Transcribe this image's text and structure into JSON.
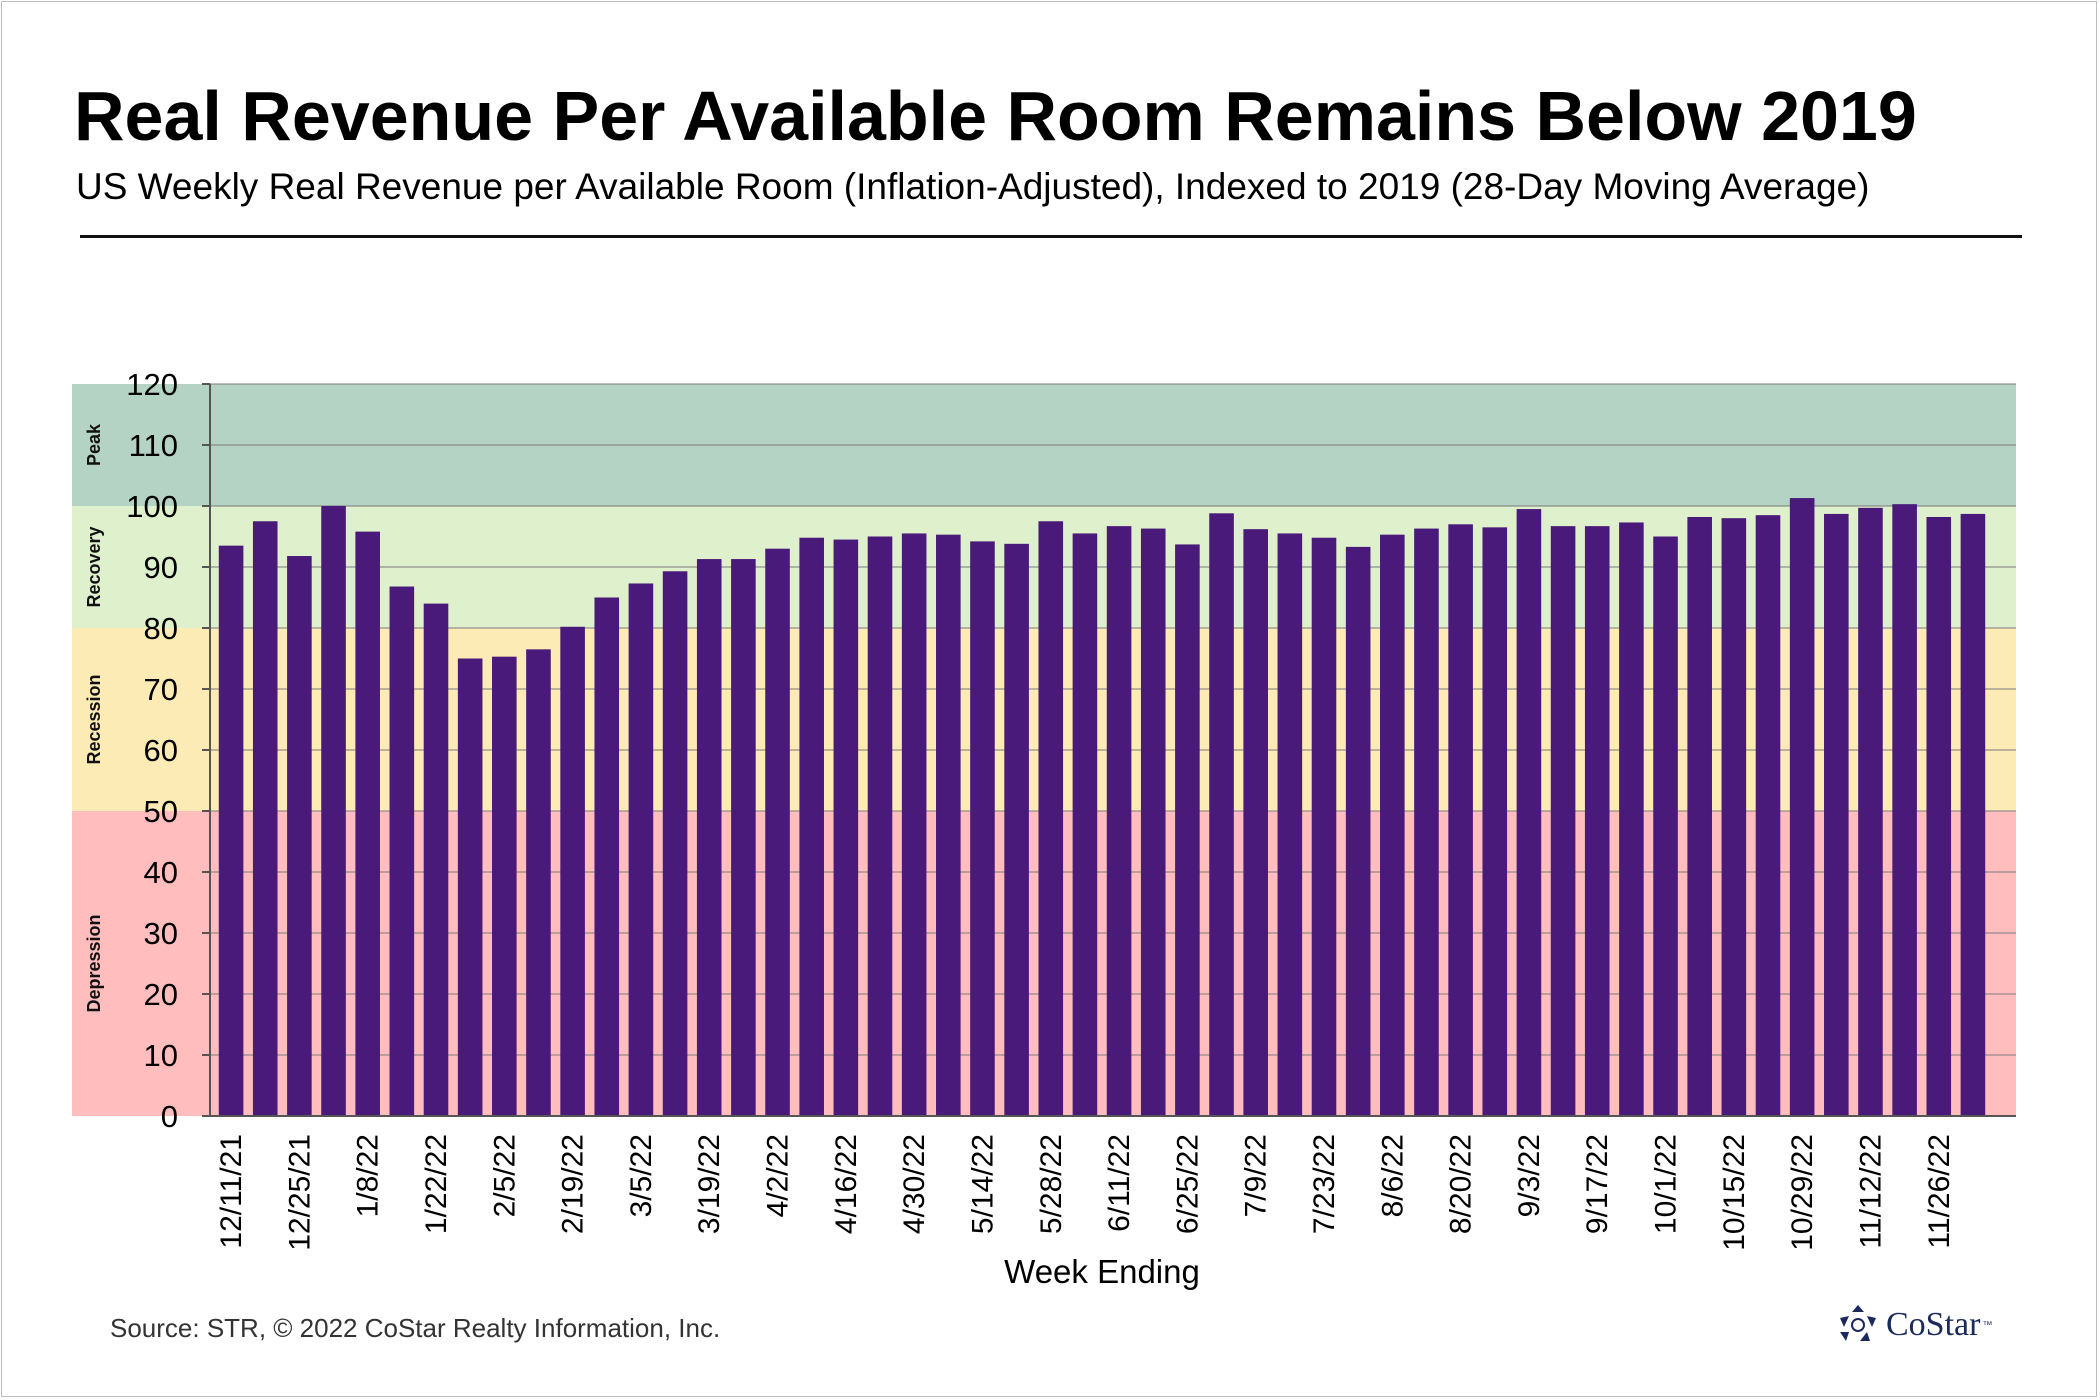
{
  "header": {
    "title": "Real Revenue Per Available Room Remains Below 2019",
    "subtitle": "US Weekly Real Revenue per Available Room (Inflation-Adjusted), Indexed to 2019 (28-Day Moving Average)"
  },
  "footer": {
    "source": "Source: STR, © 2022  CoStar Realty Information, Inc.",
    "logo_text": "CoStar",
    "logo_tm": "™"
  },
  "chart_data": {
    "type": "bar",
    "title": "Real Revenue Per Available Room Remains Below 2019",
    "subtitle": "US Weekly Real Revenue per Available Room (Inflation-Adjusted), Indexed to 2019 (28-Day Moving Average)",
    "xlabel": "Week Ending",
    "ylabel": "",
    "ylim": [
      0,
      120
    ],
    "yticks": [
      0,
      10,
      20,
      30,
      40,
      50,
      60,
      70,
      80,
      90,
      100,
      110,
      120
    ],
    "grid": true,
    "bar_color": "#4a1a7a",
    "categories": [
      "12/11/21",
      "12/18/21",
      "12/25/21",
      "1/1/22",
      "1/8/22",
      "1/15/22",
      "1/22/22",
      "1/29/22",
      "2/5/22",
      "2/12/22",
      "2/19/22",
      "2/26/22",
      "3/5/22",
      "3/12/22",
      "3/19/22",
      "3/26/22",
      "4/2/22",
      "4/9/22",
      "4/16/22",
      "4/23/22",
      "4/30/22",
      "5/7/22",
      "5/14/22",
      "5/21/22",
      "5/28/22",
      "6/4/22",
      "6/11/22",
      "6/18/22",
      "6/25/22",
      "7/2/22",
      "7/9/22",
      "7/16/22",
      "7/23/22",
      "7/30/22",
      "8/6/22",
      "8/13/22",
      "8/20/22",
      "8/27/22",
      "9/3/22",
      "9/10/22",
      "9/17/22",
      "9/24/22",
      "10/1/22",
      "10/8/22",
      "10/15/22",
      "10/22/22",
      "10/29/22",
      "11/5/22",
      "11/12/22",
      "11/19/22",
      "11/26/22",
      "12/3/22"
    ],
    "tick_labels_shown": [
      "12/11/21",
      "12/25/21",
      "1/8/22",
      "1/22/22",
      "2/5/22",
      "2/19/22",
      "3/5/22",
      "3/19/22",
      "4/2/22",
      "4/16/22",
      "4/30/22",
      "5/14/22",
      "5/28/22",
      "6/11/22",
      "6/25/22",
      "7/9/22",
      "7/23/22",
      "8/6/22",
      "8/20/22",
      "9/3/22",
      "9/17/22",
      "10/1/22",
      "10/15/22",
      "10/29/22",
      "11/12/22",
      "11/26/22"
    ],
    "values": [
      93.5,
      97.5,
      91.8,
      100.0,
      95.8,
      86.8,
      84.0,
      75.0,
      75.3,
      76.5,
      80.2,
      85.0,
      87.3,
      89.3,
      91.3,
      91.3,
      93.0,
      94.8,
      94.5,
      95.0,
      95.5,
      95.3,
      94.2,
      93.8,
      97.5,
      95.5,
      96.7,
      96.3,
      93.7,
      98.8,
      96.2,
      95.5,
      94.8,
      93.3,
      95.3,
      96.3,
      97.0,
      96.5,
      99.5,
      96.7,
      96.7,
      97.3,
      95.0,
      98.2,
      98.0,
      98.5,
      101.3,
      98.7,
      99.7,
      100.3,
      98.2,
      98.7
    ],
    "zones": [
      {
        "label": "Depression",
        "from": 0,
        "to": 50,
        "color": "#ffbdbd"
      },
      {
        "label": "Recession",
        "from": 50,
        "to": 80,
        "color": "#fdebb5"
      },
      {
        "label": "Recovery",
        "from": 80,
        "to": 100,
        "color": "#dff0cc"
      },
      {
        "label": "Peak",
        "from": 100,
        "to": 120,
        "color": "#b4d3c4"
      }
    ]
  }
}
